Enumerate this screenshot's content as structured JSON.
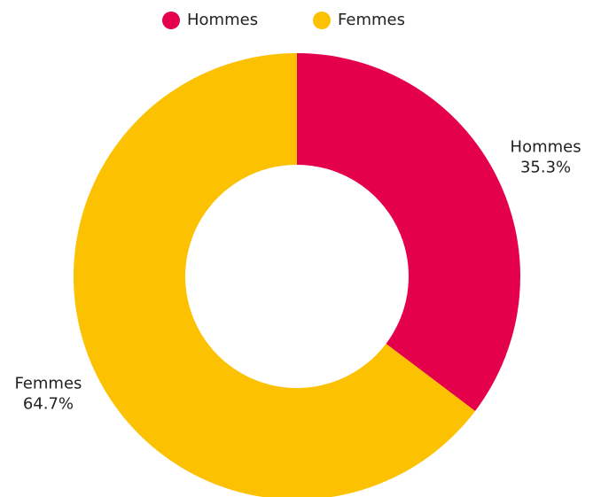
{
  "chart_data": {
    "type": "pie",
    "categories": [
      "Hommes",
      "Femmes"
    ],
    "values": [
      35.3,
      64.7
    ],
    "value_labels": [
      "35.3%",
      "64.7%"
    ],
    "colors": [
      "#e5004b",
      "#fcc100"
    ],
    "legend": "top"
  }
}
